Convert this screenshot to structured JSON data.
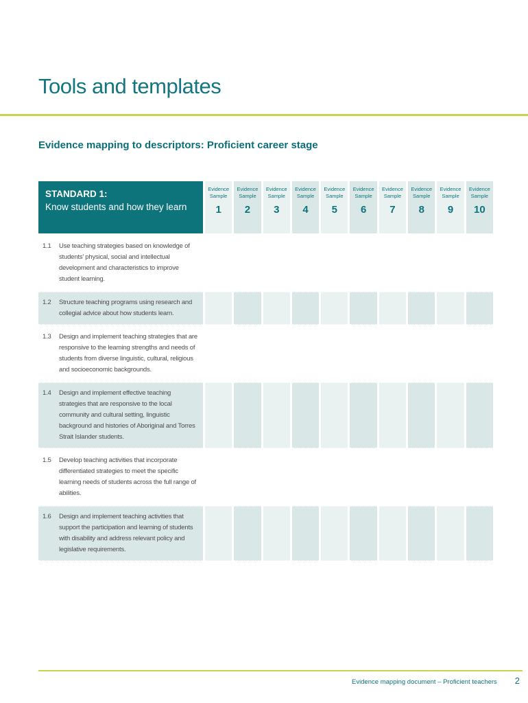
{
  "colors": {
    "teal": "#0e747c",
    "lime_rule": "#c5d44c",
    "tint_light": "#eaf2f1",
    "tint_dark": "#d9e8e6",
    "body_text": "#4d4d4d"
  },
  "page": {
    "title": "Tools and templates",
    "subtitle": "Evidence mapping to descriptors: Proficient career stage"
  },
  "table": {
    "standard": {
      "line1": "STANDARD 1:",
      "line2": "Know students and how they learn"
    },
    "columns": [
      {
        "label": "Evidence Sample",
        "number": "1"
      },
      {
        "label": "Evidence Sample",
        "number": "2"
      },
      {
        "label": "Evidence Sample",
        "number": "3"
      },
      {
        "label": "Evidence Sample",
        "number": "4"
      },
      {
        "label": "Evidence Sample",
        "number": "5"
      },
      {
        "label": "Evidence Sample",
        "number": "6"
      },
      {
        "label": "Evidence Sample",
        "number": "7"
      },
      {
        "label": "Evidence Sample",
        "number": "8"
      },
      {
        "label": "Evidence Sample",
        "number": "9"
      },
      {
        "label": "Evidence Sample",
        "number": "10"
      }
    ],
    "rows": [
      {
        "num": "1.1",
        "text": "Use teaching strategies based on knowledge of students’ physical, social and intellectual development and characteristics to improve student learning."
      },
      {
        "num": "1.2",
        "text": "Structure teaching programs using research and collegial advice about how students learn."
      },
      {
        "num": "1.3",
        "text": "Design and implement teaching strategies that are responsive to the learning strengths and needs of students from diverse linguistic, cultural, religious and socioeconomic backgrounds."
      },
      {
        "num": "1.4",
        "text": "Design and implement effective teaching strategies that are responsive to the local community and cultural setting, linguistic background and histories of Aboriginal and Torres Strait Islander students."
      },
      {
        "num": "1.5",
        "text": "Develop teaching activities that incorporate differentiated strategies to meet the specific learning needs of students across the full range of abilities."
      },
      {
        "num": "1.6",
        "text": "Design and implement teaching activities that support the participation and learning of students with disability and address relevant policy and legislative requirements."
      }
    ]
  },
  "footer": {
    "text": "Evidence mapping document – Proficient teachers",
    "page_number": "2"
  }
}
